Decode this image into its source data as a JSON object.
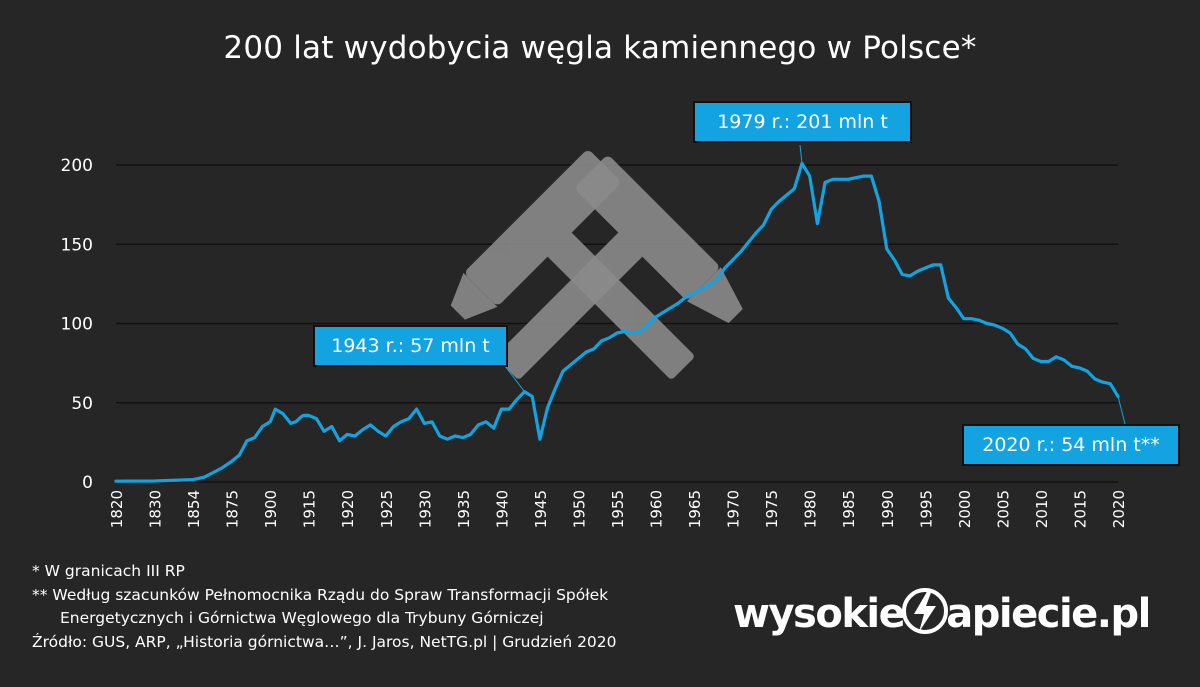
{
  "title": "200 lat wydobycia węgla kamiennego w Polsce*",
  "callouts": {
    "peak": "1979 r.: 201 mln t",
    "war": "1943 r.: 57 mln t",
    "last": "2020 r.: 54 mln t**"
  },
  "notes": {
    "n1": "* W granicach III RP",
    "n2": "** Według szacunków Pełnomocnika Rządu do Spraw Transformacji Spółek",
    "n3": "Energetycznych i Górnictwa Węglowego dla Trybuny Górniczej",
    "source": "Źródło: GUS, ARP, „Historia górnictwa…”, J. Jaros, NetTG.pl   |   Grudzień 2020"
  },
  "logo": {
    "left": "wysokie",
    "right": "apiecie.pl"
  },
  "colors": {
    "background": "#262626",
    "line": "#12a3e0",
    "grid": "#111111",
    "icon": "#8a8a8a"
  },
  "icon": "hammer-and-pick-icon",
  "chart_data": {
    "type": "line",
    "title": "200 lat wydobycia węgla kamiennego w Polsce*",
    "xlabel": "",
    "ylabel": "",
    "ylim": [
      0,
      200
    ],
    "yticks": [
      0,
      50,
      100,
      150,
      200
    ],
    "grid": true,
    "x_tick_labels": [
      "1820",
      "1830",
      "1854",
      "1875",
      "1900",
      "1915",
      "1920",
      "1925",
      "1930",
      "1935",
      "1940",
      "1945",
      "1950",
      "1955",
      "1960",
      "1965",
      "1970",
      "1975",
      "1980",
      "1985",
      "1990",
      "1995",
      "2000",
      "2005",
      "2010",
      "2015",
      "2020"
    ],
    "series": [
      {
        "points": [
          [
            "1820",
            0.5
          ],
          [
            "1830",
            0.6
          ],
          [
            "1854",
            1.5
          ],
          [
            "1860",
            3
          ],
          [
            "1865",
            6
          ],
          [
            "1870",
            9
          ],
          [
            "1875",
            13
          ],
          [
            "1880",
            17
          ],
          [
            "1885",
            26
          ],
          [
            "1890",
            28
          ],
          [
            "1895",
            35
          ],
          [
            "1900",
            38
          ],
          [
            "1902",
            46
          ],
          [
            "1905",
            43
          ],
          [
            "1908",
            37
          ],
          [
            "1910",
            38
          ],
          [
            "1912",
            41
          ],
          [
            "1913",
            42
          ],
          [
            "1915",
            42
          ],
          [
            "1916",
            40
          ],
          [
            "1917",
            32
          ],
          [
            "1918",
            35
          ],
          [
            "1919",
            26
          ],
          [
            "1920",
            30
          ],
          [
            "1921",
            29
          ],
          [
            "1922",
            33
          ],
          [
            "1923",
            36
          ],
          [
            "1924",
            32
          ],
          [
            "1925",
            29
          ],
          [
            "1926",
            35
          ],
          [
            "1927",
            38
          ],
          [
            "1928",
            40
          ],
          [
            "1929",
            46
          ],
          [
            "1930",
            37
          ],
          [
            "1931",
            38
          ],
          [
            "1932",
            29
          ],
          [
            "1933",
            27
          ],
          [
            "1934",
            29
          ],
          [
            "1935",
            28
          ],
          [
            "1936",
            30
          ],
          [
            "1937",
            36
          ],
          [
            "1938",
            38
          ],
          [
            "1939",
            34
          ],
          [
            "1940",
            46
          ],
          [
            "1941",
            46
          ],
          [
            "1942",
            52
          ],
          [
            "1943",
            57
          ],
          [
            "1944",
            54
          ],
          [
            "1945",
            27
          ],
          [
            "1946",
            47
          ],
          [
            "1947",
            59
          ],
          [
            "1948",
            70
          ],
          [
            "1949",
            74
          ],
          [
            "1950",
            78
          ],
          [
            "1951",
            82
          ],
          [
            "1952",
            84
          ],
          [
            "1953",
            89
          ],
          [
            "1954",
            91
          ],
          [
            "1955",
            94
          ],
          [
            "1956",
            95
          ],
          [
            "1957",
            94
          ],
          [
            "1958",
            95
          ],
          [
            "1959",
            99
          ],
          [
            "1960",
            104
          ],
          [
            "1961",
            107
          ],
          [
            "1962",
            110
          ],
          [
            "1963",
            113
          ],
          [
            "1964",
            117
          ],
          [
            "1965",
            119
          ],
          [
            "1966",
            122
          ],
          [
            "1967",
            124
          ],
          [
            "1968",
            128
          ],
          [
            "1969",
            135
          ],
          [
            "1970",
            140
          ],
          [
            "1971",
            145
          ],
          [
            "1972",
            151
          ],
          [
            "1973",
            157
          ],
          [
            "1974",
            162
          ],
          [
            "1975",
            172
          ],
          [
            "1976",
            177
          ],
          [
            "1977",
            181
          ],
          [
            "1978",
            185
          ],
          [
            "1979",
            201
          ],
          [
            "1980",
            193
          ],
          [
            "1981",
            163
          ],
          [
            "1982",
            189
          ],
          [
            "1983",
            191
          ],
          [
            "1984",
            191
          ],
          [
            "1985",
            191
          ],
          [
            "1986",
            192
          ],
          [
            "1987",
            193
          ],
          [
            "1988",
            193
          ],
          [
            "1989",
            177
          ],
          [
            "1990",
            147
          ],
          [
            "1991",
            140
          ],
          [
            "1992",
            131
          ],
          [
            "1993",
            130
          ],
          [
            "1994",
            133
          ],
          [
            "1995",
            135
          ],
          [
            "1996",
            137
          ],
          [
            "1997",
            137
          ],
          [
            "1998",
            116
          ],
          [
            "1999",
            110
          ],
          [
            "2000",
            103
          ],
          [
            "2001",
            103
          ],
          [
            "2002",
            102
          ],
          [
            "2003",
            100
          ],
          [
            "2004",
            99
          ],
          [
            "2005",
            97
          ],
          [
            "2006",
            94
          ],
          [
            "2007",
            87
          ],
          [
            "2008",
            84
          ],
          [
            "2009",
            78
          ],
          [
            "2010",
            76
          ],
          [
            "2011",
            76
          ],
          [
            "2012",
            79
          ],
          [
            "2013",
            77
          ],
          [
            "2014",
            73
          ],
          [
            "2015",
            72
          ],
          [
            "2016",
            70
          ],
          [
            "2017",
            65
          ],
          [
            "2018",
            63
          ],
          [
            "2019",
            62
          ],
          [
            "2020",
            54
          ]
        ]
      }
    ]
  }
}
